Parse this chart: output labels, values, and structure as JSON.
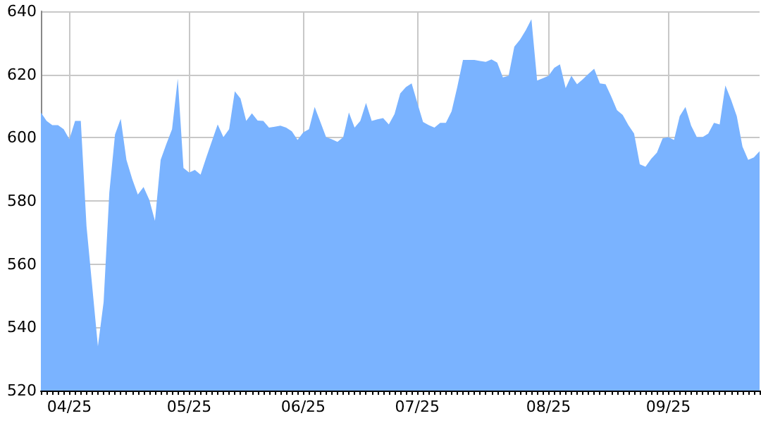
{
  "chart_data": {
    "type": "area",
    "grid": true,
    "marker": "none",
    "categories": [
      null,
      null,
      null,
      null,
      null,
      "04/25",
      null,
      null,
      null,
      null,
      null,
      null,
      null,
      null,
      null,
      null,
      null,
      null,
      null,
      null,
      null,
      null,
      null,
      null,
      null,
      null,
      "05/25",
      null,
      null,
      null,
      null,
      null,
      null,
      null,
      null,
      null,
      null,
      null,
      null,
      null,
      null,
      null,
      null,
      null,
      null,
      null,
      "06/25",
      null,
      null,
      null,
      null,
      null,
      null,
      null,
      null,
      null,
      null,
      null,
      null,
      null,
      null,
      null,
      null,
      null,
      null,
      null,
      "07/25",
      null,
      null,
      null,
      null,
      null,
      null,
      null,
      null,
      null,
      null,
      null,
      null,
      null,
      null,
      null,
      null,
      null,
      null,
      null,
      null,
      null,
      null,
      "08/25",
      null,
      null,
      null,
      null,
      null,
      null,
      null,
      null,
      null,
      null,
      null,
      null,
      null,
      null,
      null,
      null,
      null,
      null,
      null,
      null,
      "09/25",
      null,
      null,
      null,
      null,
      null,
      null,
      null,
      null,
      null,
      null,
      null,
      null,
      null,
      null,
      null,
      null
    ],
    "ylim": [
      520,
      640
    ],
    "yticks": [
      520,
      540,
      560,
      580,
      600,
      620,
      640
    ],
    "series": [
      {
        "color": "#7ab3ff",
        "values": [
          608,
          605.3,
          604,
          604,
          602.7,
          599.5,
          605.3,
          605.3,
          572,
          553,
          534,
          548,
          582.6,
          601,
          606,
          593,
          587,
          582,
          584.4,
          580.4,
          573.7,
          593,
          598,
          602.7,
          618.7,
          590.4,
          589,
          589.8,
          588.3,
          593.8,
          599,
          604.2,
          600.2,
          602.7,
          614.7,
          612.4,
          605.3,
          607.7,
          605.4,
          605.3,
          603.2,
          603.5,
          603.8,
          603.2,
          602,
          599.3,
          601.7,
          602.7,
          609.7,
          605,
          600.2,
          599.5,
          598.7,
          600.2,
          608,
          603.2,
          605.3,
          611,
          605.3,
          605.8,
          606.2,
          604.2,
          607.5,
          614,
          616,
          617.2,
          611,
          605,
          604,
          603.2,
          604.7,
          604.7,
          608.3,
          616,
          624.6,
          624.6,
          624.6,
          624.3,
          624,
          624.8,
          623.8,
          619.1,
          619.6,
          628.8,
          631,
          634,
          637.5,
          618.1,
          618.8,
          619.6,
          622.1,
          623.2,
          615.7,
          619.6,
          616.9,
          618.5,
          620.2,
          621.8,
          617.2,
          616.9,
          613,
          608.7,
          607.2,
          604,
          601.3,
          591.6,
          590.8,
          593.3,
          595.3,
          599.8,
          600.2,
          599.3,
          606.8,
          609.7,
          603.8,
          600.2,
          600.2,
          601.3,
          604.7,
          604.2,
          616.5,
          612,
          606.8,
          597.2,
          593,
          593.8,
          595.7
        ]
      }
    ]
  }
}
